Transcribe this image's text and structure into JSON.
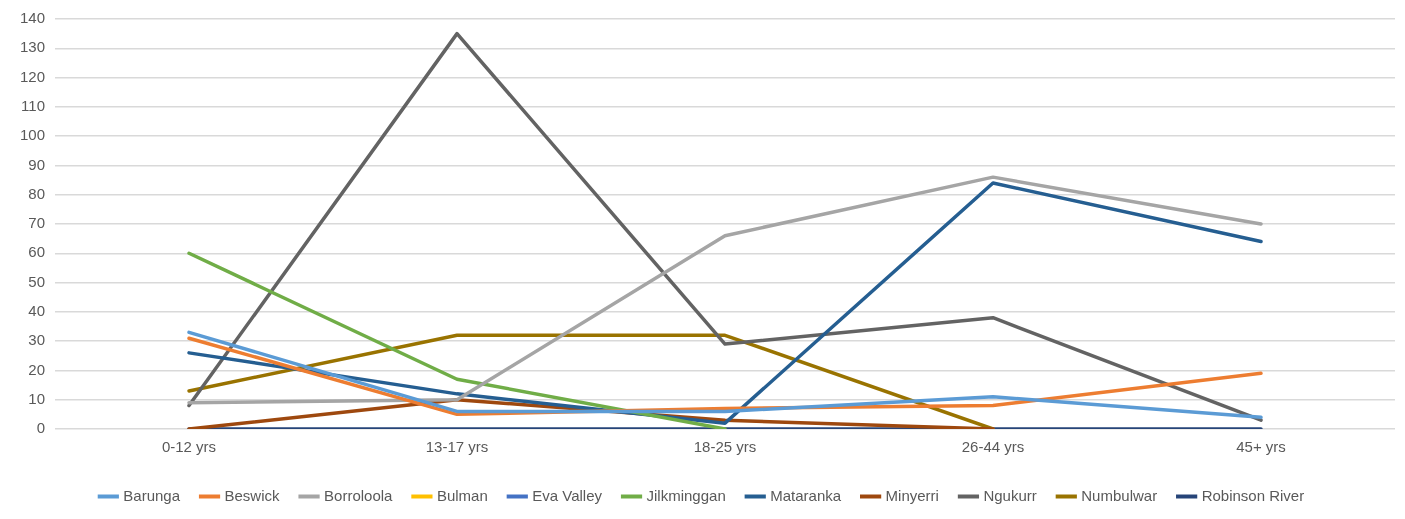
{
  "chart_data": {
    "type": "line",
    "categories": [
      "0-12 yrs",
      "13-17 yrs",
      "18-25 yrs",
      "26-44 yrs",
      "45+ yrs"
    ],
    "series": [
      {
        "name": "Barunga",
        "color": "#5b9bd5",
        "values": [
          33,
          6,
          6,
          11,
          4
        ]
      },
      {
        "name": "Beswick",
        "color": "#ed7d31",
        "values": [
          31,
          5,
          7,
          8,
          19
        ]
      },
      {
        "name": "Borroloola",
        "color": "#a5a5a5",
        "values": [
          9,
          10,
          66,
          86,
          70
        ]
      },
      {
        "name": "Bulman",
        "color": "#ffc000",
        "values": [
          null,
          null,
          null,
          null,
          null
        ]
      },
      {
        "name": "Eva Valley",
        "color": "#4472c4",
        "values": [
          null,
          null,
          null,
          null,
          null
        ]
      },
      {
        "name": "Jilkminggan",
        "color": "#70ad47",
        "values": [
          60,
          17,
          0,
          null,
          null
        ]
      },
      {
        "name": "Mataranka",
        "color": "#255e91",
        "values": [
          26,
          12,
          2,
          84,
          64
        ]
      },
      {
        "name": "Minyerri",
        "color": "#9e480e",
        "values": [
          0,
          10,
          3,
          0,
          null
        ]
      },
      {
        "name": "Ngukurr",
        "color": "#636363",
        "values": [
          8,
          135,
          29,
          38,
          3
        ]
      },
      {
        "name": "Numbulwar",
        "color": "#997300",
        "values": [
          13,
          32,
          32,
          0,
          null
        ]
      },
      {
        "name": "Robinson River",
        "color": "#264478",
        "values": [
          0,
          0,
          0,
          0,
          0
        ]
      }
    ],
    "ylim": [
      0,
      140
    ],
    "yticks": [
      0,
      10,
      20,
      30,
      40,
      50,
      60,
      70,
      80,
      90,
      100,
      110,
      120,
      130,
      140
    ],
    "grid": "y",
    "legend": "bottom",
    "marker": "none",
    "line_style": "solid"
  }
}
